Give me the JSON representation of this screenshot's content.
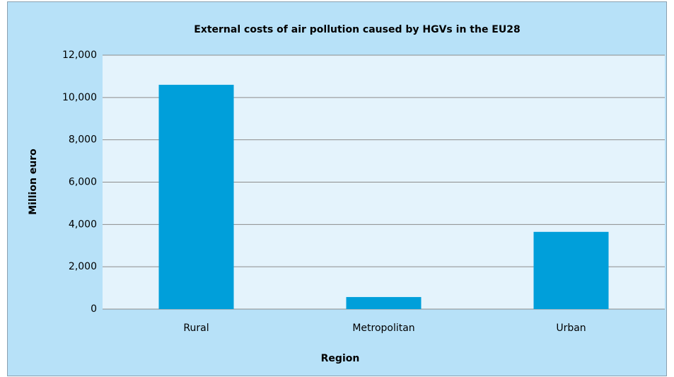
{
  "chart_data": {
    "type": "bar",
    "title": "External costs of air pollution caused by HGVs in the EU28",
    "x_label": "Region",
    "y_label": "Million euro",
    "categories": [
      "Rural",
      "Metropolitan",
      "Urban"
    ],
    "values": [
      10600,
      570,
      3650
    ],
    "color": "#009fda",
    "ylim": [
      0,
      12000
    ],
    "yticks": [
      0,
      {
        "value": 2000,
        "label": "2,000"
      },
      {
        "value": 4000,
        "label": "4,000"
      },
      {
        "value": 6000,
        "label": "6,000"
      },
      {
        "value": 8000,
        "label": "8,000"
      },
      {
        "value": 10000,
        "label": "10,000"
      },
      {
        "value": 12000,
        "label": "12,000"
      }
    ],
    "grid": true
  }
}
